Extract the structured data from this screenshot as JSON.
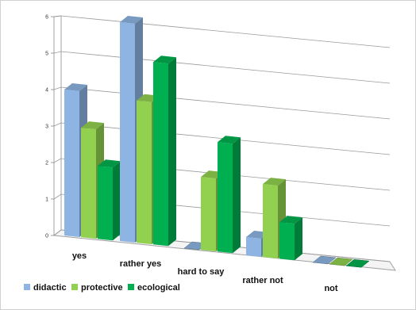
{
  "chart_data": {
    "type": "bar",
    "categories": [
      "yes",
      "rather yes",
      "hard to say",
      "rather not",
      "not"
    ],
    "series": [
      {
        "name": "didactic",
        "values": [
          4,
          6,
          0,
          0.5,
          0
        ]
      },
      {
        "name": "protective",
        "values": [
          3,
          3.9,
          2,
          2,
          0
        ]
      },
      {
        "name": "ecological",
        "values": [
          2,
          5,
          3,
          1,
          0
        ]
      }
    ],
    "yticks": [
      0,
      1,
      2,
      3,
      4,
      5,
      6
    ],
    "ylim": [
      0,
      6
    ],
    "title": "",
    "xlabel": "",
    "ylabel": "",
    "grid": true,
    "legend": "bottom-left",
    "colors": {
      "didactic": "#8db4e2",
      "protective": "#92d050",
      "ecological": "#00b050"
    }
  }
}
